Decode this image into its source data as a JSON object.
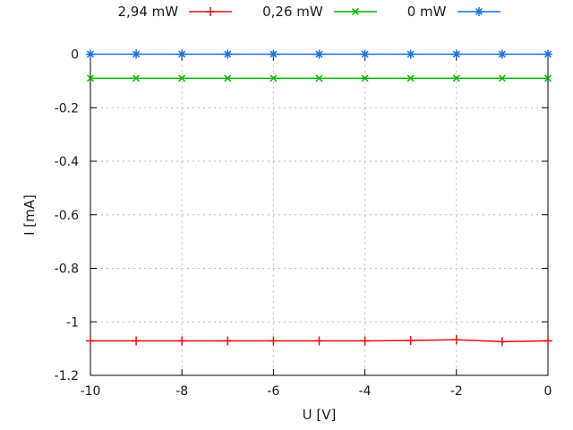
{
  "figure": {
    "background_color": "#ffffff",
    "text_color": "#1a1a1a",
    "border_color": "#000000",
    "grid_color": "#b8b8b8"
  },
  "chart_data": {
    "type": "line",
    "title": "",
    "xlabel": "U [V]",
    "ylabel": "I [mA]",
    "xlim": [
      -10,
      0
    ],
    "ylim": [
      -1.2,
      0
    ],
    "xticks": [
      -10,
      -8,
      -6,
      -4,
      -2,
      0
    ],
    "xtick_labels": [
      "-10",
      "-8",
      "-6",
      "-4",
      "-2",
      "0"
    ],
    "yticks": [
      0,
      -0.2,
      -0.4,
      -0.6,
      -0.8,
      -1,
      -1.2
    ],
    "ytick_labels": [
      "0",
      "-0.2",
      "-0.4",
      "-0.6",
      "-0.8",
      "-1",
      "-1.2"
    ],
    "grid": true,
    "grid_style": "dashed",
    "legend_position": "top-outside-horizontal",
    "x": [
      -10,
      -9,
      -8,
      -7,
      -6,
      -5,
      -4,
      -3,
      -2,
      -1,
      0
    ],
    "series": [
      {
        "name": "2,94 mW",
        "color": "#e60e0e",
        "marker": "plus",
        "values": [
          -1.071,
          -1.071,
          -1.071,
          -1.071,
          -1.071,
          -1.071,
          -1.071,
          -1.07,
          -1.067,
          -1.074,
          -1.071
        ]
      },
      {
        "name": "0,26 mW",
        "color": "#00b400",
        "marker": "cross",
        "values": [
          -0.09,
          -0.09,
          -0.09,
          -0.09,
          -0.09,
          -0.09,
          -0.09,
          -0.09,
          -0.09,
          -0.09,
          -0.09
        ]
      },
      {
        "name": "0 mW",
        "color": "#1b6fe0",
        "marker": "asterisk",
        "values": [
          0,
          0,
          0,
          0,
          0,
          0,
          0,
          0,
          0,
          0,
          0
        ]
      }
    ]
  }
}
